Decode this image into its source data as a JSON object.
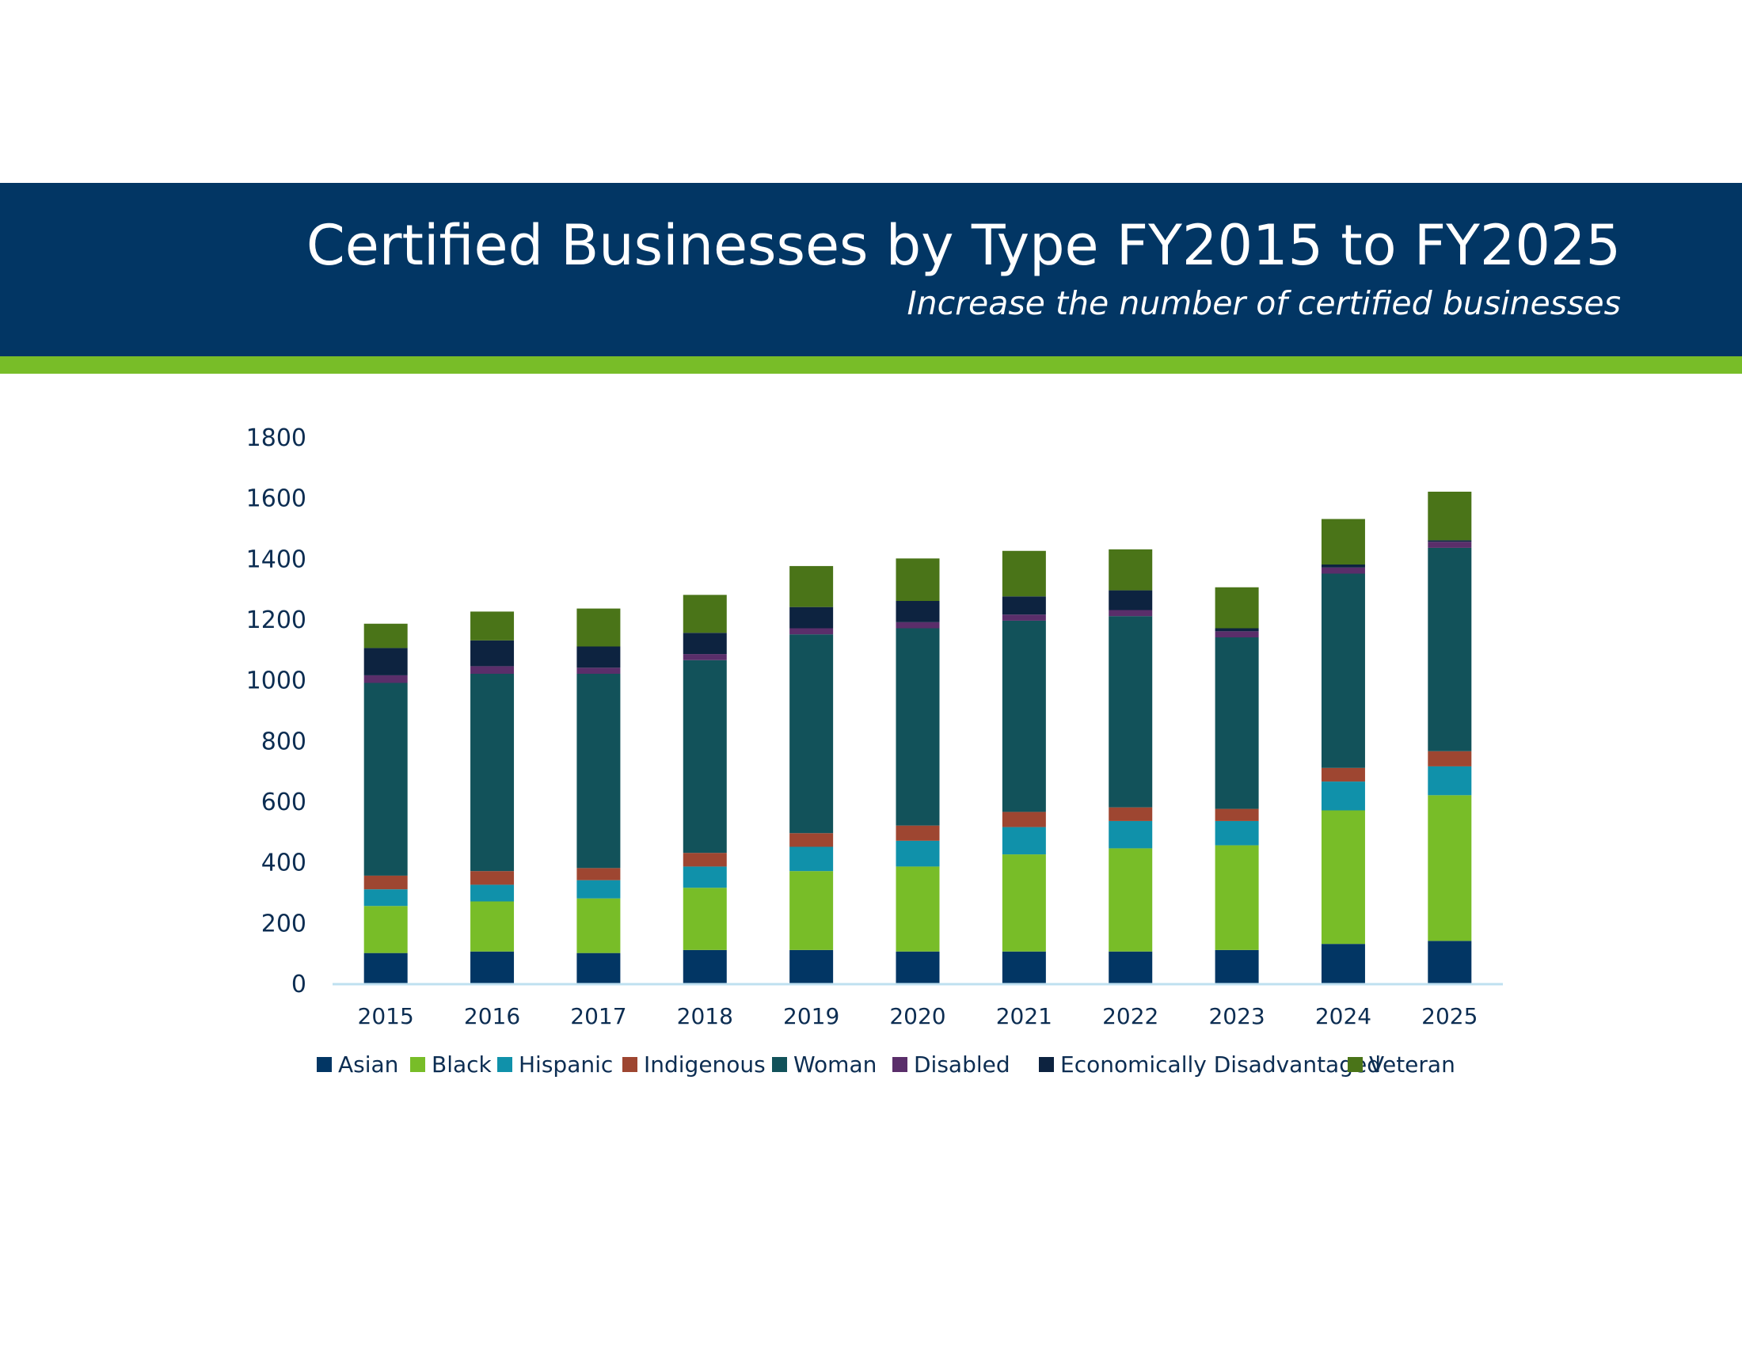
{
  "header": {
    "title": "Certified Businesses by Type FY2015 to FY2025",
    "subtitle": "Increase the number of certified businesses"
  },
  "colors": {
    "banner": "#023664",
    "stripe": "#78bd28",
    "axis_text": "#0c2d52",
    "axis_line": "#bfe0f0"
  },
  "chart_data": {
    "type": "bar",
    "stacked": true,
    "title": "",
    "xlabel": "",
    "ylabel": "",
    "ylim": [
      0,
      1800
    ],
    "yticks": [
      "0",
      "200",
      "400",
      "600",
      "800",
      "1000",
      "1200",
      "1400",
      "1600",
      "1800"
    ],
    "grid": false,
    "legend_position": "bottom",
    "categories": [
      "2015",
      "2016",
      "2017",
      "2018",
      "2019",
      "2020",
      "2021",
      "2022",
      "2023",
      "2024",
      "2025"
    ],
    "series": [
      {
        "name": "Asian",
        "color": "#023664",
        "values": [
          100,
          105,
          100,
          110,
          110,
          105,
          105,
          105,
          110,
          130,
          140
        ]
      },
      {
        "name": "Black",
        "color": "#78bd28",
        "values": [
          155,
          165,
          180,
          205,
          260,
          280,
          320,
          340,
          345,
          440,
          480
        ]
      },
      {
        "name": "Hispanic",
        "color": "#1091aa",
        "values": [
          55,
          55,
          60,
          70,
          80,
          85,
          90,
          90,
          80,
          95,
          95
        ]
      },
      {
        "name": "Indigenous",
        "color": "#9e4631",
        "values": [
          45,
          45,
          40,
          45,
          45,
          50,
          50,
          45,
          40,
          45,
          50
        ]
      },
      {
        "name": "Woman",
        "color": "#12525a",
        "values": [
          635,
          650,
          640,
          635,
          655,
          650,
          630,
          630,
          565,
          640,
          670
        ]
      },
      {
        "name": "Disabled",
        "color": "#5a2e6a",
        "values": [
          25,
          25,
          20,
          20,
          20,
          20,
          20,
          20,
          20,
          20,
          20
        ]
      },
      {
        "name": "Economically Disadvantaged",
        "color": "#0d2340",
        "values": [
          90,
          85,
          70,
          70,
          70,
          70,
          60,
          65,
          10,
          10,
          5
        ]
      },
      {
        "name": "Veteran",
        "color": "#4a7418",
        "values": [
          80,
          95,
          125,
          125,
          135,
          140,
          150,
          135,
          135,
          150,
          160
        ]
      }
    ]
  }
}
